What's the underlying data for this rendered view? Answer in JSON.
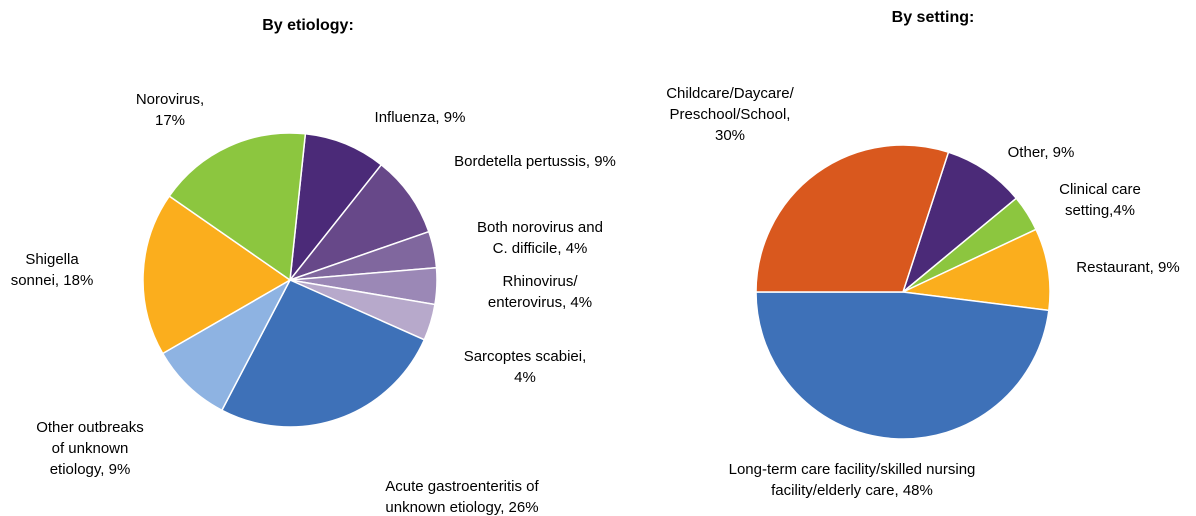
{
  "chart_data": [
    {
      "type": "pie",
      "title": "By etiology:",
      "categories": [
        "Influenza",
        "Bordetella pertussis",
        "Both norovirus and C. difficile",
        "Rhinovirus/enterovirus",
        "Sarcoptes scabiei",
        "Acute gastroenteritis of unknown etiology",
        "Other outbreaks of unknown etiology",
        "Shigella sonnei",
        "Norovirus"
      ],
      "values": [
        9,
        9,
        4,
        4,
        4,
        26,
        9,
        18,
        17
      ],
      "value_labels": [
        [
          "Influenza, 9%"
        ],
        [
          "Bordetella pertussis, 9%"
        ],
        [
          "Both norovirus and",
          "C. difficile, 4%"
        ],
        [
          "Rhinovirus/",
          "enterovirus, 4%"
        ],
        [
          "Sarcoptes scabiei,",
          "4%"
        ],
        [
          "Acute gastroenteritis of",
          "unknown etiology, 26%"
        ],
        [
          "Other outbreaks",
          "of unknown",
          "etiology, 9%"
        ],
        [
          "Shigella",
          "sonnei, 18%"
        ],
        [
          "Norovirus,",
          "17%"
        ]
      ],
      "colors": [
        "#4b2a78",
        "#674889",
        "#80679e",
        "#9b88b6",
        "#b7a9cb",
        "#3e71b8",
        "#8eb3e2",
        "#fbae1d",
        "#8cc63f"
      ]
    },
    {
      "type": "pie",
      "title": "By setting:",
      "categories": [
        "Other",
        "Clinical care setting",
        "Restaurant",
        "Long-term care facility/skilled nursing facility/elderly care",
        "Childcare/Daycare/Preschool/School"
      ],
      "values": [
        9,
        4,
        9,
        48,
        30
      ],
      "value_labels": [
        [
          "Other, 9%"
        ],
        [
          "Clinical care",
          "setting,4%"
        ],
        [
          "Restaurant, 9%"
        ],
        [
          "Long-term care facility/skilled nursing",
          "facility/elderly care, 48%"
        ],
        [
          "Childcare/Daycare/",
          "Preschool/School,",
          "30%"
        ]
      ],
      "colors": [
        "#4b2a78",
        "#8cc63f",
        "#fbae1d",
        "#3e71b8",
        "#d9581e"
      ]
    }
  ]
}
